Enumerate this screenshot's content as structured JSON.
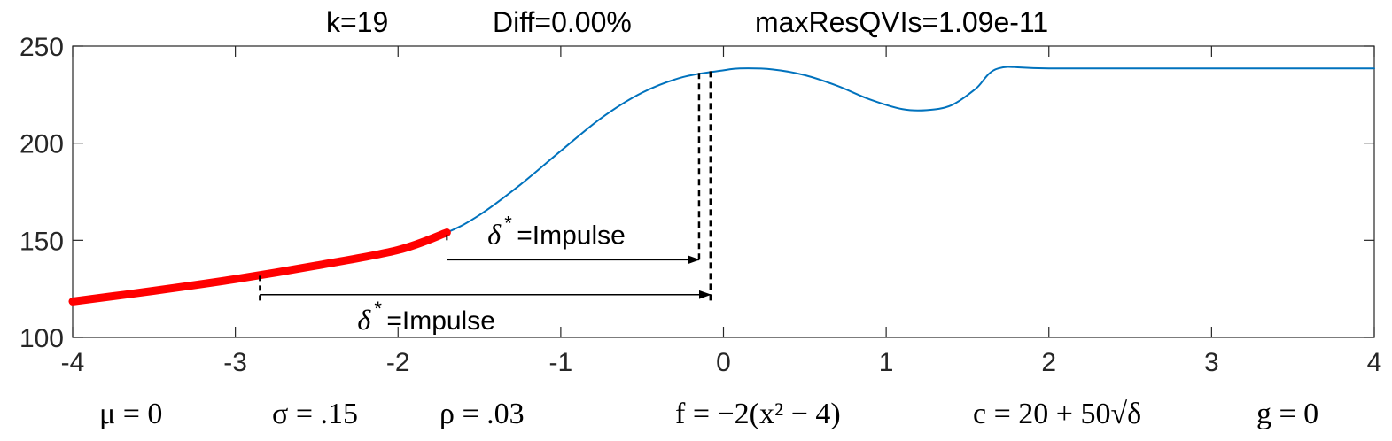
{
  "chart_data": {
    "type": "line",
    "title_items": [
      "k=19",
      "Diff=0.00%",
      "maxResQVIs=1.09e-11"
    ],
    "xlim": [
      -4,
      4
    ],
    "ylim": [
      100,
      250
    ],
    "xticks": [
      -4,
      -3,
      -2,
      -1,
      0,
      1,
      2,
      3,
      4
    ],
    "yticks": [
      100,
      150,
      200,
      250
    ],
    "series": [
      {
        "color": "#0072BD",
        "style": "thin-line",
        "x": [
          -4,
          -3.5,
          -3,
          -2.5,
          -2,
          -1.7,
          -1.5,
          -1.25,
          -1.0,
          -0.75,
          -0.5,
          -0.25,
          0,
          0.1,
          0.3,
          0.5,
          0.7,
          0.9,
          1.1,
          1.25,
          1.4,
          1.55,
          1.69,
          2,
          3,
          4
        ],
        "y": [
          118.5,
          124,
          130,
          137,
          145,
          154,
          163,
          178.5,
          196,
          213,
          226,
          234,
          237.5,
          238.5,
          238,
          235,
          229.5,
          222.5,
          217.5,
          217,
          219.5,
          228,
          238.5,
          238.5,
          238.5,
          238.5
        ]
      },
      {
        "color": "#FF0000",
        "style": "thick-marker",
        "x": [
          -4,
          -3.5,
          -3,
          -2.5,
          -2,
          -1.7
        ],
        "y": [
          118.5,
          124,
          130,
          137,
          145,
          154
        ]
      }
    ],
    "annotations": [
      {
        "label": "=Impulse",
        "symbol": "δ",
        "superscript": "*",
        "x_start": -1.7,
        "x_end": -0.15,
        "y": 140,
        "vline_start": [
          -1.7,
          150,
          154
        ],
        "vline_end": [
          -0.15,
          140,
          237
        ],
        "text_pos": [
          -1.45,
          148
        ]
      },
      {
        "label": "=Impulse",
        "symbol": "δ",
        "superscript": "*",
        "x_start": -2.85,
        "x_end": -0.08,
        "y": 122,
        "vline_start": [
          -2.85,
          119,
          134
        ],
        "vline_end": [
          -0.08,
          119,
          238
        ],
        "text_pos": [
          -2.25,
          104
        ]
      }
    ],
    "params": [
      "μ = 0",
      "σ = .15",
      "ρ = .03",
      "f = −2(x² − 4)",
      "c = 20 + 50√δ",
      "g = 0"
    ]
  }
}
